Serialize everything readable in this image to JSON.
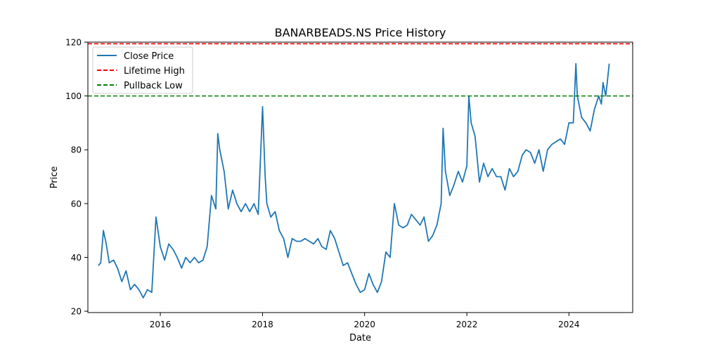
{
  "chart_data": {
    "type": "line",
    "title": "BANARBEADS.NS Price History",
    "xlabel": "Date",
    "ylabel": "Price",
    "xlim": [
      "2014-08-01",
      "2025-04-01"
    ],
    "ylim": [
      19.5,
      120
    ],
    "xticks": [
      {
        "date": "2016-01-01",
        "label": "2016"
      },
      {
        "date": "2018-01-01",
        "label": "2018"
      },
      {
        "date": "2020-01-01",
        "label": "2020"
      },
      {
        "date": "2022-01-01",
        "label": "2022"
      },
      {
        "date": "2024-01-01",
        "label": "2024"
      }
    ],
    "yticks": [
      20,
      40,
      60,
      80,
      100,
      120
    ],
    "grid": false,
    "legend": "top-left",
    "series": [
      {
        "name": "Close Price",
        "color": "#1f77b4",
        "style": "solid",
        "x": [
          "2014-10-15",
          "2014-11-01",
          "2014-11-20",
          "2014-12-10",
          "2015-01-01",
          "2015-02-01",
          "2015-03-01",
          "2015-04-01",
          "2015-05-01",
          "2015-06-01",
          "2015-07-01",
          "2015-08-01",
          "2015-09-01",
          "2015-10-01",
          "2015-11-01",
          "2015-12-01",
          "2016-01-01",
          "2016-02-01",
          "2016-03-01",
          "2016-04-01",
          "2016-05-01",
          "2016-06-01",
          "2016-07-01",
          "2016-08-01",
          "2016-09-01",
          "2016-10-01",
          "2016-11-01",
          "2016-12-01",
          "2017-01-01",
          "2017-02-01",
          "2017-02-15",
          "2017-03-01",
          "2017-04-01",
          "2017-05-01",
          "2017-06-01",
          "2017-07-01",
          "2017-08-01",
          "2017-09-01",
          "2017-10-01",
          "2017-11-01",
          "2017-12-01",
          "2018-01-01",
          "2018-01-20",
          "2018-02-01",
          "2018-03-01",
          "2018-04-01",
          "2018-05-01",
          "2018-06-01",
          "2018-07-01",
          "2018-08-01",
          "2018-09-01",
          "2018-10-01",
          "2018-11-01",
          "2018-12-01",
          "2019-01-01",
          "2019-02-01",
          "2019-03-01",
          "2019-04-01",
          "2019-05-01",
          "2019-06-01",
          "2019-07-01",
          "2019-08-01",
          "2019-09-01",
          "2019-10-01",
          "2019-11-01",
          "2019-12-01",
          "2020-01-01",
          "2020-02-01",
          "2020-03-01",
          "2020-04-01",
          "2020-05-01",
          "2020-06-01",
          "2020-07-01",
          "2020-08-01",
          "2020-09-01",
          "2020-10-01",
          "2020-11-01",
          "2020-12-01",
          "2021-01-01",
          "2021-02-01",
          "2021-03-01",
          "2021-04-01",
          "2021-05-01",
          "2021-06-01",
          "2021-07-01",
          "2021-07-15",
          "2021-08-01",
          "2021-09-01",
          "2021-10-01",
          "2021-11-01",
          "2021-12-01",
          "2022-01-01",
          "2022-01-15",
          "2022-02-01",
          "2022-03-01",
          "2022-04-01",
          "2022-05-01",
          "2022-06-01",
          "2022-07-01",
          "2022-08-01",
          "2022-09-01",
          "2022-10-01",
          "2022-11-01",
          "2022-12-01",
          "2023-01-01",
          "2023-02-01",
          "2023-03-01",
          "2023-04-01",
          "2023-05-01",
          "2023-06-01",
          "2023-07-01",
          "2023-08-01",
          "2023-09-01",
          "2023-10-01",
          "2023-11-01",
          "2023-12-01",
          "2024-01-01",
          "2024-02-01",
          "2024-02-20",
          "2024-03-01",
          "2024-04-01",
          "2024-05-01",
          "2024-06-01",
          "2024-07-01",
          "2024-08-01",
          "2024-08-20",
          "2024-09-01",
          "2024-09-20",
          "2024-10-01",
          "2024-10-15"
        ],
        "y": [
          37,
          38,
          50,
          45,
          38,
          39,
          36,
          31,
          35,
          28,
          30,
          28,
          25,
          28,
          27,
          55,
          44,
          39,
          45,
          43,
          40,
          36,
          40,
          38,
          40,
          38,
          39,
          44,
          63,
          58,
          86,
          80,
          72,
          58,
          65,
          60,
          57,
          60,
          57,
          60,
          56,
          96,
          70,
          60,
          55,
          57,
          50,
          47,
          40,
          47,
          46,
          46,
          47,
          46,
          45,
          47,
          44,
          43,
          50,
          47,
          42,
          37,
          38,
          34,
          30,
          27,
          28,
          34,
          30,
          27,
          31,
          42,
          40,
          60,
          52,
          51,
          52,
          56,
          54,
          52,
          55,
          46,
          48,
          52,
          60,
          88,
          72,
          63,
          67,
          72,
          68,
          74,
          100,
          90,
          85,
          68,
          75,
          70,
          73,
          70,
          70,
          65,
          73,
          70,
          72,
          78,
          80,
          79,
          75,
          80,
          72,
          80,
          82,
          83,
          84,
          82,
          90,
          90,
          112,
          100,
          92,
          90,
          87,
          95,
          100,
          97,
          105,
          100,
          105,
          112
        ]
      },
      {
        "name": "Lifetime High",
        "color": "#ff0000",
        "style": "dashed",
        "value": 119.4
      },
      {
        "name": "Pullback Low",
        "color": "#008000",
        "style": "dashed",
        "value": 100
      }
    ]
  }
}
